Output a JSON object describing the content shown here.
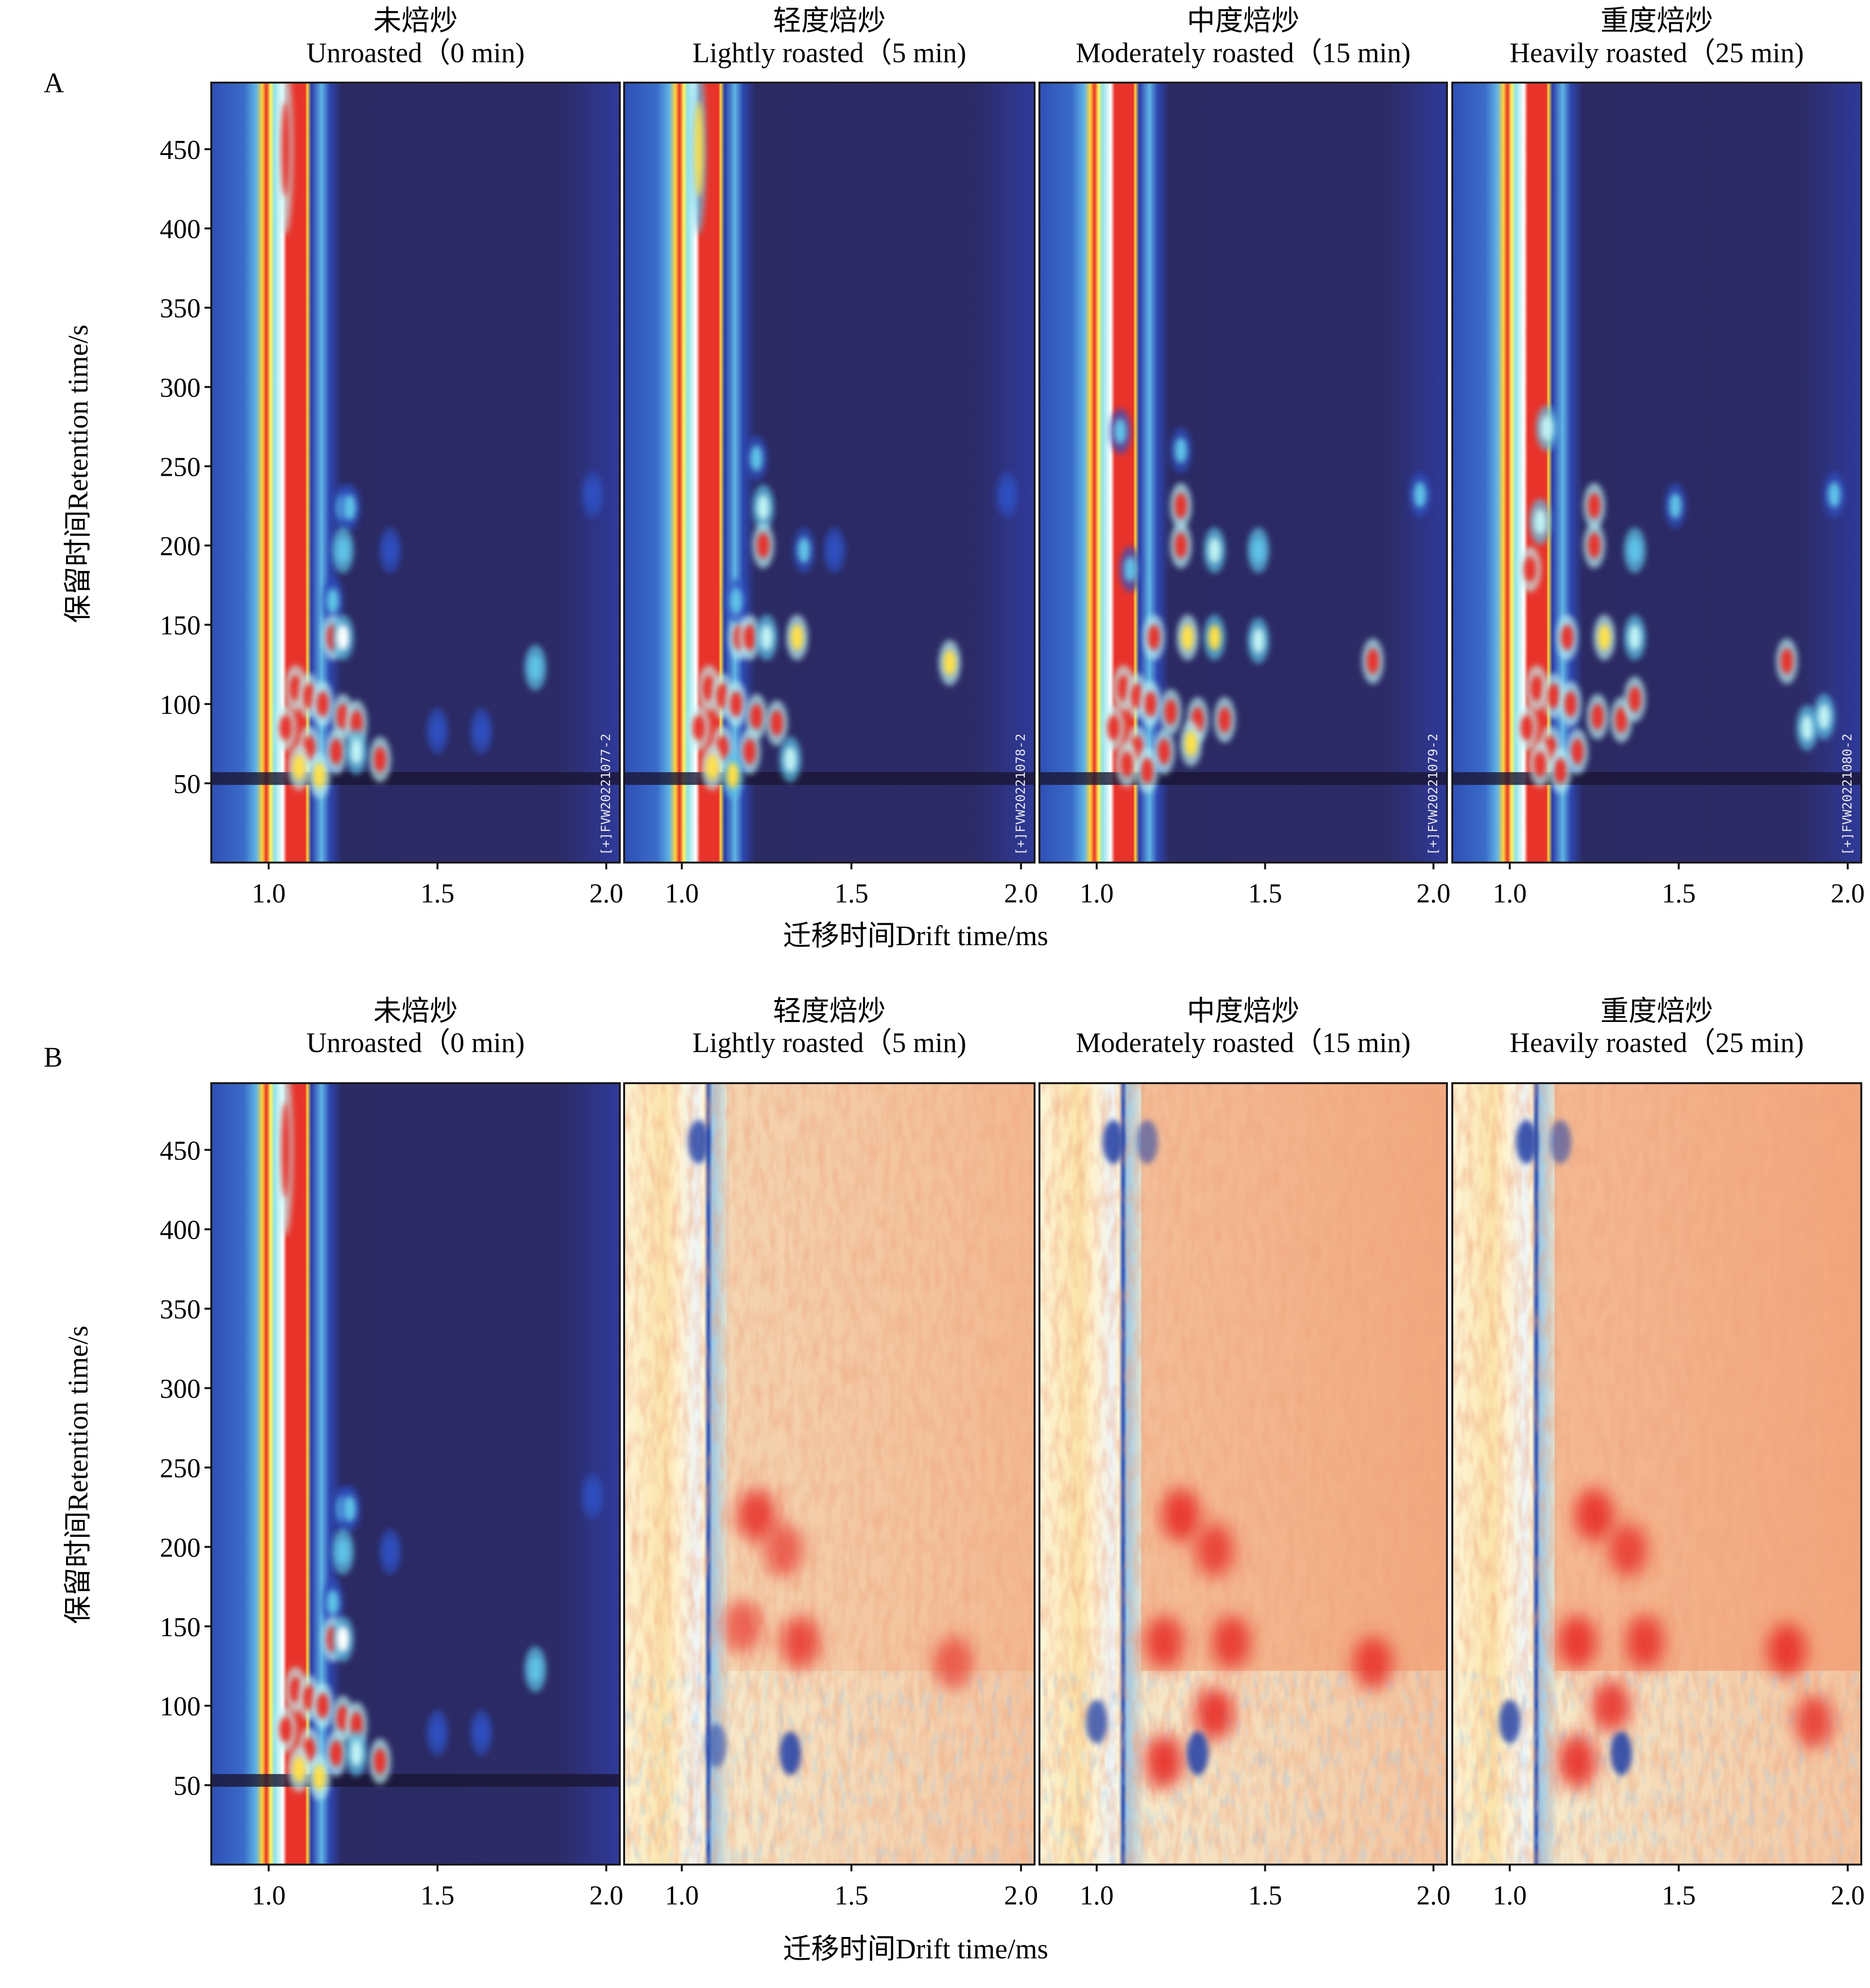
{
  "figure": {
    "panel_letters": [
      "A",
      "B"
    ],
    "x_axis_label": "迁移时间Drift time/ms",
    "y_axis_label": "保留时间Retention time/s"
  },
  "chart_data": [
    {
      "type": "heatmap",
      "id": "A",
      "title": "GC-IMS topographic plots",
      "xlabel": "迁移时间Drift time/ms",
      "ylabel": "保留时间Retention time/s",
      "xlim": [
        0.83,
        2.04
      ],
      "ylim": [
        0,
        492
      ],
      "xticks": [
        1.0,
        1.5,
        2.0
      ],
      "xtick_labels": [
        "1.0",
        "1.5",
        "2.0"
      ],
      "yticks": [
        50,
        100,
        150,
        200,
        250,
        300,
        350,
        400,
        450
      ],
      "ytick_labels": [
        "50",
        "100",
        "150",
        "200",
        "250",
        "300",
        "350",
        "400",
        "450"
      ],
      "grid": false,
      "colormap": "jet (intensity)",
      "background_color": "#2b2a63",
      "panels": [
        {
          "title_cn": "未焙炒",
          "title_en": "Unroasted（0 min)",
          "stamp": "[+]FVW20221077-2",
          "peaks": [
            {
              "x": 1.05,
              "y": 450,
              "i": 0.9,
              "w": 0.012,
              "h": 30
            },
            {
              "x": 1.22,
              "y": 224,
              "i": 0.35
            },
            {
              "x": 1.24,
              "y": 224,
              "i": 0.3
            },
            {
              "x": 1.22,
              "y": 197,
              "i": 0.45
            },
            {
              "x": 1.36,
              "y": 197,
              "i": 0.25
            },
            {
              "x": 1.19,
              "y": 165,
              "i": 0.4
            },
            {
              "x": 1.19,
              "y": 142,
              "i": 0.85
            },
            {
              "x": 1.22,
              "y": 142,
              "i": 0.7
            },
            {
              "x": 1.79,
              "y": 123,
              "i": 0.45
            },
            {
              "x": 1.08,
              "y": 110,
              "i": 0.95
            },
            {
              "x": 1.12,
              "y": 105,
              "i": 0.95
            },
            {
              "x": 1.16,
              "y": 100,
              "i": 0.9
            },
            {
              "x": 1.22,
              "y": 92,
              "i": 0.95
            },
            {
              "x": 1.26,
              "y": 88,
              "i": 0.95
            },
            {
              "x": 1.05,
              "y": 85,
              "i": 0.9
            },
            {
              "x": 1.12,
              "y": 72,
              "i": 0.85
            },
            {
              "x": 1.2,
              "y": 70,
              "i": 0.9
            },
            {
              "x": 1.33,
              "y": 65,
              "i": 0.95
            },
            {
              "x": 1.26,
              "y": 70,
              "i": 0.5
            },
            {
              "x": 1.15,
              "y": 55,
              "i": 0.8
            },
            {
              "x": 1.09,
              "y": 60,
              "i": 0.8
            },
            {
              "x": 1.5,
              "y": 83,
              "i": 0.2
            },
            {
              "x": 1.63,
              "y": 83,
              "i": 0.2
            },
            {
              "x": 1.96,
              "y": 232,
              "i": 0.25
            }
          ]
        },
        {
          "title_cn": "轻度焙炒",
          "title_en": "Lightly roasted（5 min)",
          "stamp": "[+]FVW20221078-2",
          "peaks": [
            {
              "x": 1.05,
              "y": 450,
              "i": 0.75,
              "w": 0.012,
              "h": 30
            },
            {
              "x": 1.24,
              "y": 224,
              "i": 0.55
            },
            {
              "x": 1.24,
              "y": 200,
              "i": 0.95
            },
            {
              "x": 1.36,
              "y": 197,
              "i": 0.35
            },
            {
              "x": 1.45,
              "y": 197,
              "i": 0.25
            },
            {
              "x": 1.17,
              "y": 142,
              "i": 0.95
            },
            {
              "x": 1.2,
              "y": 142,
              "i": 0.9
            },
            {
              "x": 1.34,
              "y": 142,
              "i": 0.8
            },
            {
              "x": 1.25,
              "y": 142,
              "i": 0.5
            },
            {
              "x": 1.16,
              "y": 165,
              "i": 0.35
            },
            {
              "x": 1.79,
              "y": 126,
              "i": 0.8
            },
            {
              "x": 1.22,
              "y": 255,
              "i": 0.3
            },
            {
              "x": 1.08,
              "y": 110,
              "i": 0.95
            },
            {
              "x": 1.12,
              "y": 105,
              "i": 0.95
            },
            {
              "x": 1.16,
              "y": 100,
              "i": 0.95
            },
            {
              "x": 1.22,
              "y": 92,
              "i": 0.95
            },
            {
              "x": 1.28,
              "y": 88,
              "i": 0.95
            },
            {
              "x": 1.05,
              "y": 85,
              "i": 0.9
            },
            {
              "x": 1.12,
              "y": 72,
              "i": 0.85
            },
            {
              "x": 1.2,
              "y": 70,
              "i": 0.9
            },
            {
              "x": 1.32,
              "y": 65,
              "i": 0.6
            },
            {
              "x": 1.15,
              "y": 55,
              "i": 0.75
            },
            {
              "x": 1.09,
              "y": 60,
              "i": 0.8
            },
            {
              "x": 1.96,
              "y": 232,
              "i": 0.25
            }
          ]
        },
        {
          "title_cn": "中度焙炒",
          "title_en": "Moderately roasted（15 min)",
          "stamp": "[+]FVW20221079-2",
          "peaks": [
            {
              "x": 1.07,
              "y": 272,
              "i": 0.4
            },
            {
              "x": 1.25,
              "y": 225,
              "i": 0.95
            },
            {
              "x": 1.25,
              "y": 200,
              "i": 0.97
            },
            {
              "x": 1.35,
              "y": 197,
              "i": 0.5
            },
            {
              "x": 1.48,
              "y": 197,
              "i": 0.45
            },
            {
              "x": 1.1,
              "y": 185,
              "i": 0.35
            },
            {
              "x": 1.17,
              "y": 142,
              "i": 0.95
            },
            {
              "x": 1.27,
              "y": 142,
              "i": 0.8
            },
            {
              "x": 1.35,
              "y": 142,
              "i": 0.75
            },
            {
              "x": 1.48,
              "y": 140,
              "i": 0.55
            },
            {
              "x": 1.82,
              "y": 127,
              "i": 0.95
            },
            {
              "x": 1.25,
              "y": 260,
              "i": 0.3
            },
            {
              "x": 1.08,
              "y": 110,
              "i": 0.95
            },
            {
              "x": 1.12,
              "y": 105,
              "i": 0.95
            },
            {
              "x": 1.16,
              "y": 100,
              "i": 0.95
            },
            {
              "x": 1.22,
              "y": 95,
              "i": 0.95
            },
            {
              "x": 1.3,
              "y": 90,
              "i": 0.95
            },
            {
              "x": 1.38,
              "y": 90,
              "i": 0.95
            },
            {
              "x": 1.05,
              "y": 85,
              "i": 0.9
            },
            {
              "x": 1.12,
              "y": 72,
              "i": 0.9
            },
            {
              "x": 1.2,
              "y": 70,
              "i": 0.95
            },
            {
              "x": 1.28,
              "y": 75,
              "i": 0.8
            },
            {
              "x": 1.15,
              "y": 58,
              "i": 0.85
            },
            {
              "x": 1.09,
              "y": 62,
              "i": 0.85
            },
            {
              "x": 1.96,
              "y": 232,
              "i": 0.3
            }
          ]
        },
        {
          "title_cn": "重度焙炒",
          "title_en": "Heavily roasted（25 min)",
          "stamp": "[+]FVW20221080-2",
          "peaks": [
            {
              "x": 1.11,
              "y": 274,
              "i": 0.55
            },
            {
              "x": 1.09,
              "y": 215,
              "i": 0.5
            },
            {
              "x": 1.25,
              "y": 225,
              "i": 0.95
            },
            {
              "x": 1.25,
              "y": 200,
              "i": 0.97
            },
            {
              "x": 1.06,
              "y": 185,
              "i": 0.9
            },
            {
              "x": 1.37,
              "y": 197,
              "i": 0.45
            },
            {
              "x": 1.49,
              "y": 225,
              "i": 0.3
            },
            {
              "x": 1.17,
              "y": 142,
              "i": 0.95
            },
            {
              "x": 1.28,
              "y": 142,
              "i": 0.8
            },
            {
              "x": 1.37,
              "y": 142,
              "i": 0.5
            },
            {
              "x": 1.82,
              "y": 127,
              "i": 0.97
            },
            {
              "x": 1.96,
              "y": 232,
              "i": 0.35
            },
            {
              "x": 1.08,
              "y": 110,
              "i": 0.95
            },
            {
              "x": 1.13,
              "y": 105,
              "i": 0.95
            },
            {
              "x": 1.18,
              "y": 100,
              "i": 0.95
            },
            {
              "x": 1.26,
              "y": 92,
              "i": 0.95
            },
            {
              "x": 1.33,
              "y": 90,
              "i": 0.95
            },
            {
              "x": 1.37,
              "y": 103,
              "i": 0.95
            },
            {
              "x": 1.05,
              "y": 85,
              "i": 0.95
            },
            {
              "x": 1.12,
              "y": 72,
              "i": 0.95
            },
            {
              "x": 1.2,
              "y": 70,
              "i": 0.95
            },
            {
              "x": 1.15,
              "y": 58,
              "i": 0.9
            },
            {
              "x": 1.09,
              "y": 62,
              "i": 0.9
            },
            {
              "x": 1.88,
              "y": 85,
              "i": 0.55
            },
            {
              "x": 1.93,
              "y": 92,
              "i": 0.5
            }
          ]
        }
      ]
    },
    {
      "type": "heatmap",
      "id": "B",
      "title": "GC-IMS difference plots (reference: Unroasted)",
      "xlabel": "迁移时间Drift time/ms",
      "ylabel": "保留时间Retention time/s",
      "xlim": [
        0.83,
        2.04
      ],
      "ylim": [
        0,
        492
      ],
      "xticks": [
        1.0,
        1.5,
        2.0
      ],
      "xtick_labels": [
        "1.0",
        "1.5",
        "2.0"
      ],
      "yticks": [
        50,
        100,
        150,
        200,
        250,
        300,
        350,
        400,
        450
      ],
      "ytick_labels": [
        "50",
        "100",
        "150",
        "200",
        "250",
        "300",
        "350",
        "400",
        "450"
      ],
      "grid": false,
      "colormap": "diverging: blue = lower than reference, white = same, red = higher",
      "panels": [
        {
          "title_cn": "未焙炒",
          "title_en": "Unroasted（0 min)",
          "role": "reference",
          "background_level": 0
        },
        {
          "title_cn": "轻度焙炒",
          "title_en": "Lightly roasted（5 min)",
          "role": "difference",
          "background_level": 0.25,
          "red_regions": [
            {
              "x": 1.22,
              "y": 220,
              "i": 0.9
            },
            {
              "x": 1.3,
              "y": 198,
              "i": 0.7
            },
            {
              "x": 1.18,
              "y": 150,
              "i": 0.7
            },
            {
              "x": 1.35,
              "y": 140,
              "i": 0.85
            },
            {
              "x": 1.8,
              "y": 127,
              "i": 0.7
            }
          ],
          "blue_regions": [
            {
              "x": 1.05,
              "y": 455,
              "i": 0.85
            },
            {
              "x": 1.32,
              "y": 70,
              "i": 0.9
            },
            {
              "x": 1.1,
              "y": 75,
              "i": 0.6
            }
          ]
        },
        {
          "title_cn": "中度焙炒",
          "title_en": "Moderately roasted（15 min)",
          "role": "difference",
          "background_level": 0.55,
          "red_regions": [
            {
              "x": 1.25,
              "y": 220,
              "i": 0.95
            },
            {
              "x": 1.35,
              "y": 198,
              "i": 0.85
            },
            {
              "x": 1.2,
              "y": 140,
              "i": 0.9
            },
            {
              "x": 1.4,
              "y": 140,
              "i": 0.9
            },
            {
              "x": 1.82,
              "y": 127,
              "i": 0.9
            },
            {
              "x": 1.35,
              "y": 95,
              "i": 0.95
            },
            {
              "x": 1.2,
              "y": 65,
              "i": 0.95
            }
          ],
          "blue_regions": [
            {
              "x": 1.05,
              "y": 455,
              "i": 0.9
            },
            {
              "x": 1.15,
              "y": 455,
              "i": 0.6
            },
            {
              "x": 1.0,
              "y": 90,
              "i": 0.8
            },
            {
              "x": 1.3,
              "y": 70,
              "i": 0.9
            }
          ]
        },
        {
          "title_cn": "重度焙炒",
          "title_en": "Heavily roasted（25 min)",
          "role": "difference",
          "background_level": 0.6,
          "red_regions": [
            {
              "x": 1.25,
              "y": 220,
              "i": 0.95
            },
            {
              "x": 1.35,
              "y": 198,
              "i": 0.85
            },
            {
              "x": 1.2,
              "y": 140,
              "i": 0.95
            },
            {
              "x": 1.4,
              "y": 140,
              "i": 0.9
            },
            {
              "x": 1.82,
              "y": 135,
              "i": 0.95
            },
            {
              "x": 1.3,
              "y": 100,
              "i": 0.9
            },
            {
              "x": 1.9,
              "y": 90,
              "i": 0.85
            },
            {
              "x": 1.2,
              "y": 65,
              "i": 0.95
            }
          ],
          "blue_regions": [
            {
              "x": 1.05,
              "y": 455,
              "i": 0.9
            },
            {
              "x": 1.15,
              "y": 455,
              "i": 0.6
            },
            {
              "x": 1.0,
              "y": 90,
              "i": 0.85
            },
            {
              "x": 1.33,
              "y": 70,
              "i": 0.9
            }
          ]
        }
      ]
    }
  ]
}
